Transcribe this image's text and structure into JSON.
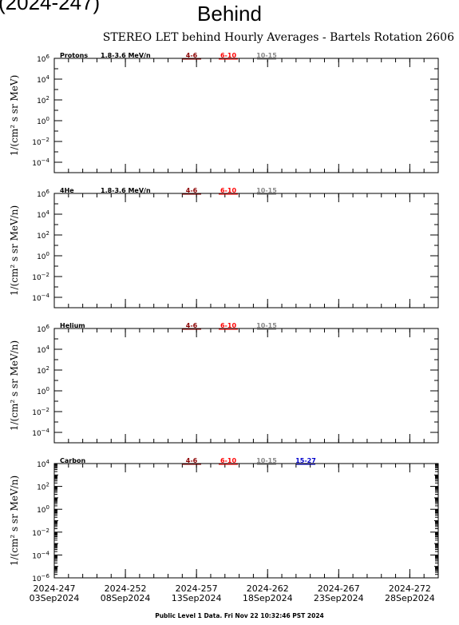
{
  "header": {
    "partial_text": "(2024-247)",
    "title": "Behind",
    "chart_title": "STEREO LET behind Hourly Averages - Bartels Rotation 2606"
  },
  "footer": {
    "text": "Public Level 1 Data. Fri Nov 22 10:32:46 PST 2024"
  },
  "colors": {
    "range_4_6": "#8b0000",
    "range_6_10": "#ff0000",
    "range_10_15": "#888888",
    "range_15_27": "#0000cc"
  },
  "chart_data": [
    {
      "type": "line",
      "panel": "protons",
      "species": "Protons",
      "energy_range": "1.8-3.6 MeV/n",
      "ylabel": "1/(cm² s sr MeV)",
      "yscale": "log",
      "ylim_exponents": [
        -5,
        6
      ],
      "ytick_exponents": [
        -4,
        -2,
        0,
        2,
        4,
        6
      ],
      "legend": [
        {
          "label": "4-6",
          "color": "#8b0000"
        },
        {
          "label": "6-10",
          "color": "#ff0000"
        },
        {
          "label": "10-15",
          "color": "#888888"
        }
      ],
      "series": []
    },
    {
      "type": "line",
      "panel": "4he",
      "species": "4He",
      "energy_range": "1.8-3.6 MeV/n",
      "ylabel": "1/(cm² s sr MeV/n)",
      "yscale": "log",
      "ylim_exponents": [
        -5,
        6
      ],
      "ytick_exponents": [
        -4,
        -2,
        0,
        2,
        4,
        6
      ],
      "legend": [
        {
          "label": "4-6",
          "color": "#8b0000"
        },
        {
          "label": "6-10",
          "color": "#ff0000"
        },
        {
          "label": "10-15",
          "color": "#888888"
        }
      ],
      "series": []
    },
    {
      "type": "line",
      "panel": "helium",
      "species": "Helium",
      "energy_range": "",
      "ylabel": "1/(cm² s sr MeV/n)",
      "yscale": "log",
      "ylim_exponents": [
        -5,
        6
      ],
      "ytick_exponents": [
        -4,
        -2,
        0,
        2,
        4,
        6
      ],
      "legend": [
        {
          "label": "4-6",
          "color": "#8b0000"
        },
        {
          "label": "6-10",
          "color": "#ff0000"
        },
        {
          "label": "10-15",
          "color": "#888888"
        }
      ],
      "series": []
    },
    {
      "type": "line",
      "panel": "carbon",
      "species": "Carbon",
      "energy_range": "",
      "ylabel": "1/(cm² s sr MeV/n)",
      "yscale": "log",
      "ylim_exponents": [
        -6,
        4
      ],
      "ytick_exponents": [
        -6,
        -4,
        -2,
        0,
        2,
        4
      ],
      "legend": [
        {
          "label": "4-6",
          "color": "#8b0000"
        },
        {
          "label": "6-10",
          "color": "#ff0000"
        },
        {
          "label": "10-15",
          "color": "#888888"
        },
        {
          "label": "15-27",
          "color": "#0000cc"
        }
      ],
      "series": []
    }
  ],
  "x_axis": {
    "start_doy": 247,
    "end_doy": 274,
    "ticks": [
      {
        "doy": 247,
        "label": "2024-247",
        "date": "03Sep2024"
      },
      {
        "doy": 252,
        "label": "2024-252",
        "date": "08Sep2024"
      },
      {
        "doy": 257,
        "label": "2024-257",
        "date": "13Sep2024"
      },
      {
        "doy": 262,
        "label": "2024-262",
        "date": "18Sep2024"
      },
      {
        "doy": 267,
        "label": "2024-267",
        "date": "23Sep2024"
      },
      {
        "doy": 272,
        "label": "2024-272",
        "date": "28Sep2024"
      }
    ]
  }
}
